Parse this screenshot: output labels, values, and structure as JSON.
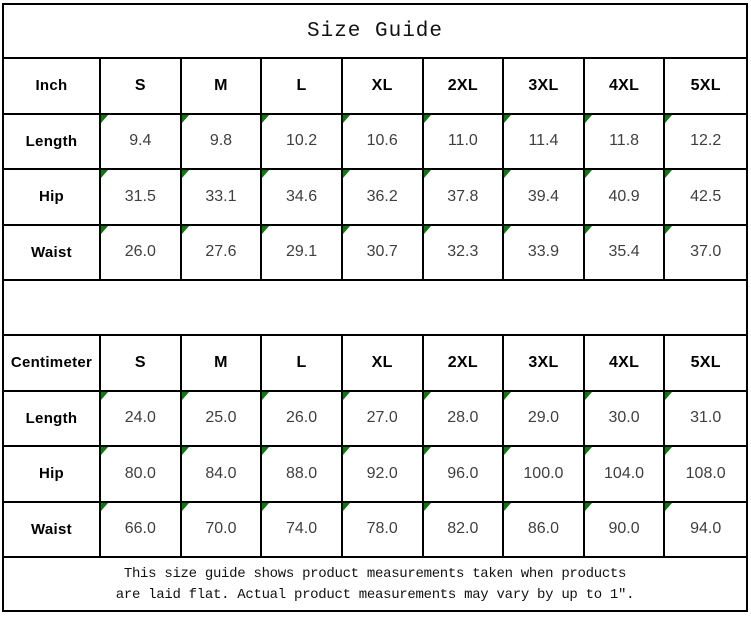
{
  "title": "Size Guide",
  "colors": {
    "marker_green": "#077d07",
    "border": "#000000",
    "value_text": "#3f3f3f"
  },
  "tables": [
    {
      "unit": "Inch",
      "sizes": [
        "S",
        "M",
        "L",
        "XL",
        "2XL",
        "3XL",
        "4XL",
        "5XL"
      ],
      "rows": [
        {
          "label": "Length",
          "values": [
            "9.4",
            "9.8",
            "10.2",
            "10.6",
            "11.0",
            "11.4",
            "11.8",
            "12.2"
          ]
        },
        {
          "label": "Hip",
          "values": [
            "31.5",
            "33.1",
            "34.6",
            "36.2",
            "37.8",
            "39.4",
            "40.9",
            "42.5"
          ]
        },
        {
          "label": "Waist",
          "values": [
            "26.0",
            "27.6",
            "29.1",
            "30.7",
            "32.3",
            "33.9",
            "35.4",
            "37.0"
          ]
        }
      ]
    },
    {
      "unit": "Centimeter",
      "sizes": [
        "S",
        "M",
        "L",
        "XL",
        "2XL",
        "3XL",
        "4XL",
        "5XL"
      ],
      "rows": [
        {
          "label": "Length",
          "values": [
            "24.0",
            "25.0",
            "26.0",
            "27.0",
            "28.0",
            "29.0",
            "30.0",
            "31.0"
          ]
        },
        {
          "label": "Hip",
          "values": [
            "80.0",
            "84.0",
            "88.0",
            "92.0",
            "96.0",
            "100.0",
            "104.0",
            "108.0"
          ]
        },
        {
          "label": "Waist",
          "values": [
            "66.0",
            "70.0",
            "74.0",
            "78.0",
            "82.0",
            "86.0",
            "90.0",
            "94.0"
          ]
        }
      ]
    }
  ],
  "footer": {
    "line1": "This size guide shows product measurements taken when products",
    "line2": "are laid flat. Actual product measurements may vary by up to 1″."
  }
}
